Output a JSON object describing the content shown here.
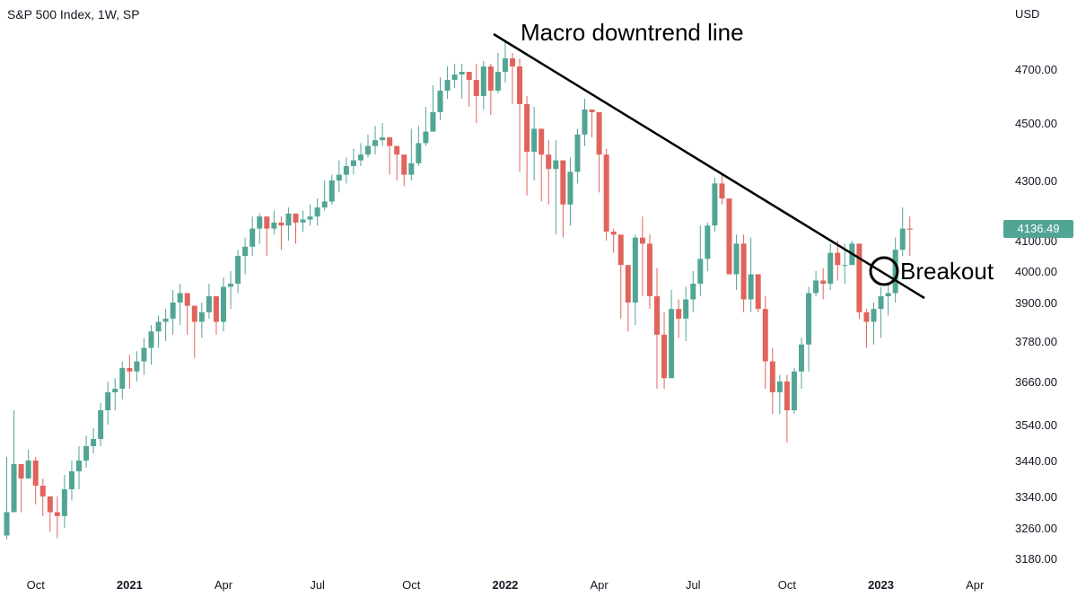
{
  "header": {
    "title": "S&P 500 Index, 1W, SP",
    "currency": "USD"
  },
  "price_tag": "4136.49",
  "annotations": {
    "macro": "Macro downtrend line",
    "breakout": "Breakout"
  },
  "colors": {
    "up": "#52a595",
    "down": "#e0645c",
    "tag": "#52a595",
    "line": "#000000"
  },
  "chart_data": {
    "type": "candlestick",
    "title": "S&P 500 Index, 1W, SP",
    "interval": "1W",
    "ylim": [
      3180,
      4840
    ],
    "yticks": [
      {
        "value": 4700,
        "label": "4700.00"
      },
      {
        "value": 4500,
        "label": "4500.00"
      },
      {
        "value": 4300,
        "label": "4300.00"
      },
      {
        "value": 4100,
        "label": "4100.00"
      },
      {
        "value": 4000,
        "label": "4000.00"
      },
      {
        "value": 3900,
        "label": "3900.00"
      },
      {
        "value": 3780,
        "label": "3780.00"
      },
      {
        "value": 3660,
        "label": "3660.00"
      },
      {
        "value": 3540,
        "label": "3540.00"
      },
      {
        "value": 3440,
        "label": "3440.00"
      },
      {
        "value": 3340,
        "label": "3340.00"
      },
      {
        "value": 3260,
        "label": "3260.00"
      },
      {
        "value": 3180,
        "label": "3180.00"
      }
    ],
    "xticks": [
      {
        "week": 4,
        "label": "Oct",
        "bold": false
      },
      {
        "week": 17,
        "label": "2021",
        "bold": true
      },
      {
        "week": 30,
        "label": "Apr",
        "bold": false
      },
      {
        "week": 43,
        "label": "Jul",
        "bold": false
      },
      {
        "week": 56,
        "label": "Oct",
        "bold": false
      },
      {
        "week": 69,
        "label": "2022",
        "bold": true
      },
      {
        "week": 82,
        "label": "Apr",
        "bold": false
      },
      {
        "week": 95,
        "label": "Jul",
        "bold": false
      },
      {
        "week": 108,
        "label": "Oct",
        "bold": false
      },
      {
        "week": 121,
        "label": "2023",
        "bold": true
      },
      {
        "week": 134,
        "label": "Apr",
        "bold": false
      }
    ],
    "closes": [
      3300,
      3430,
      3390,
      3440,
      3370,
      3340,
      3300,
      3290,
      3360,
      3410,
      3440,
      3480,
      3500,
      3580,
      3630,
      3640,
      3700,
      3690,
      3720,
      3760,
      3810,
      3840,
      3850,
      3900,
      3930,
      3890,
      3840,
      3870,
      3920,
      3840,
      3950,
      3960,
      4050,
      4080,
      4140,
      4180,
      4140,
      4160,
      4150,
      4190,
      4160,
      4170,
      4180,
      4210,
      4230,
      4300,
      4320,
      4350,
      4370,
      4390,
      4420,
      4440,
      4450,
      4420,
      4390,
      4320,
      4360,
      4430,
      4470,
      4540,
      4620,
      4660,
      4680,
      4690,
      4660,
      4600,
      4710,
      4620,
      4690,
      4740,
      4710,
      4570,
      4400,
      4480,
      4390,
      4340,
      4370,
      4220,
      4330,
      4460,
      4550,
      4540,
      4390,
      4130,
      4120,
      4020,
      3900,
      4110,
      4090,
      3920,
      3800,
      3670,
      3880,
      3850,
      3910,
      3960,
      4040,
      4150,
      4290,
      4240,
      3990,
      4090,
      3910,
      3990,
      3880,
      3720,
      3630,
      3660,
      3580,
      3690,
      3770,
      3930,
      3970,
      3960,
      4060,
      4020,
      4020,
      4090,
      3870,
      3840,
      3880,
      3920,
      3930,
      4070,
      4140,
      4136.49
    ],
    "wicks": [
      [
        3230,
        3450
      ],
      [
        3330,
        3580
      ],
      [
        3300,
        3410
      ],
      [
        3390,
        3470
      ],
      [
        3320,
        3450
      ],
      [
        3290,
        3390
      ],
      [
        3250,
        3340
      ],
      [
        3233,
        3340
      ],
      [
        3260,
        3400
      ],
      [
        3330,
        3440
      ],
      [
        3360,
        3480
      ],
      [
        3420,
        3510
      ],
      [
        3460,
        3530
      ],
      [
        3480,
        3600
      ],
      [
        3540,
        3660
      ],
      [
        3580,
        3670
      ],
      [
        3610,
        3720
      ],
      [
        3640,
        3740
      ],
      [
        3660,
        3750
      ],
      [
        3680,
        3790
      ],
      [
        3710,
        3830
      ],
      [
        3760,
        3860
      ],
      [
        3780,
        3880
      ],
      [
        3800,
        3940
      ],
      [
        3830,
        3960
      ],
      [
        3800,
        3920
      ],
      [
        3730,
        3890
      ],
      [
        3790,
        3900
      ],
      [
        3850,
        3960
      ],
      [
        3800,
        3890
      ],
      [
        3810,
        3980
      ],
      [
        3880,
        4000
      ],
      [
        3930,
        4070
      ],
      [
        3990,
        4110
      ],
      [
        4050,
        4180
      ],
      [
        4090,
        4190
      ],
      [
        4050,
        4150
      ],
      [
        4120,
        4200
      ],
      [
        4070,
        4180
      ],
      [
        4100,
        4210
      ],
      [
        4090,
        4190
      ],
      [
        4130,
        4200
      ],
      [
        4150,
        4220
      ],
      [
        4150,
        4240
      ],
      [
        4200,
        4300
      ],
      [
        4220,
        4320
      ],
      [
        4260,
        4370
      ],
      [
        4290,
        4380
      ],
      [
        4320,
        4410
      ],
      [
        4350,
        4430
      ],
      [
        4380,
        4460
      ],
      [
        4390,
        4490
      ],
      [
        4420,
        4500
      ],
      [
        4320,
        4450
      ],
      [
        4300,
        4420
      ],
      [
        4280,
        4370
      ],
      [
        4300,
        4480
      ],
      [
        4350,
        4490
      ],
      [
        4420,
        4560
      ],
      [
        4480,
        4640
      ],
      [
        4510,
        4670
      ],
      [
        4590,
        4710
      ],
      [
        4630,
        4720
      ],
      [
        4590,
        4720
      ],
      [
        4560,
        4680
      ],
      [
        4500,
        4720
      ],
      [
        4550,
        4730
      ],
      [
        4530,
        4720
      ],
      [
        4610,
        4760
      ],
      [
        4650,
        4800
      ],
      [
        4570,
        4760
      ],
      [
        4330,
        4740
      ],
      [
        4250,
        4600
      ],
      [
        4300,
        4560
      ],
      [
        4230,
        4460
      ],
      [
        4220,
        4440
      ],
      [
        4120,
        4440
      ],
      [
        4110,
        4350
      ],
      [
        4150,
        4380
      ],
      [
        4290,
        4480
      ],
      [
        4420,
        4590
      ],
      [
        4450,
        4550
      ],
      [
        4260,
        4520
      ],
      [
        4100,
        4410
      ],
      [
        4060,
        4140
      ],
      [
        3850,
        4120
      ],
      [
        3810,
        4010
      ],
      [
        3830,
        4120
      ],
      [
        3920,
        4180
      ],
      [
        3880,
        4120
      ],
      [
        3640,
        4010
      ],
      [
        3640,
        3870
      ],
      [
        3730,
        3940
      ],
      [
        3790,
        3910
      ],
      [
        3780,
        3950
      ],
      [
        3870,
        4000
      ],
      [
        3920,
        4150
      ],
      [
        4000,
        4160
      ],
      [
        4130,
        4310
      ],
      [
        4220,
        4320
      ],
      [
        4000,
        4240
      ],
      [
        3940,
        4120
      ],
      [
        3870,
        4120
      ],
      [
        3870,
        4110
      ],
      [
        3870,
        3980
      ],
      [
        3640,
        3920
      ],
      [
        3570,
        3760
      ],
      [
        3570,
        3680
      ],
      [
        3490,
        3680
      ],
      [
        3570,
        3700
      ],
      [
        3640,
        3790
      ],
      [
        3690,
        3950
      ],
      [
        3920,
        4000
      ],
      [
        3910,
        4010
      ],
      [
        3940,
        4090
      ],
      [
        3970,
        4100
      ],
      [
        3960,
        4090
      ],
      [
        4020,
        4100
      ],
      [
        3850,
        4050
      ],
      [
        3760,
        3880
      ],
      [
        3770,
        3900
      ],
      [
        3790,
        3950
      ],
      [
        3860,
        3960
      ],
      [
        3900,
        4110
      ],
      [
        4050,
        4210
      ],
      [
        4050,
        4180
      ]
    ]
  }
}
